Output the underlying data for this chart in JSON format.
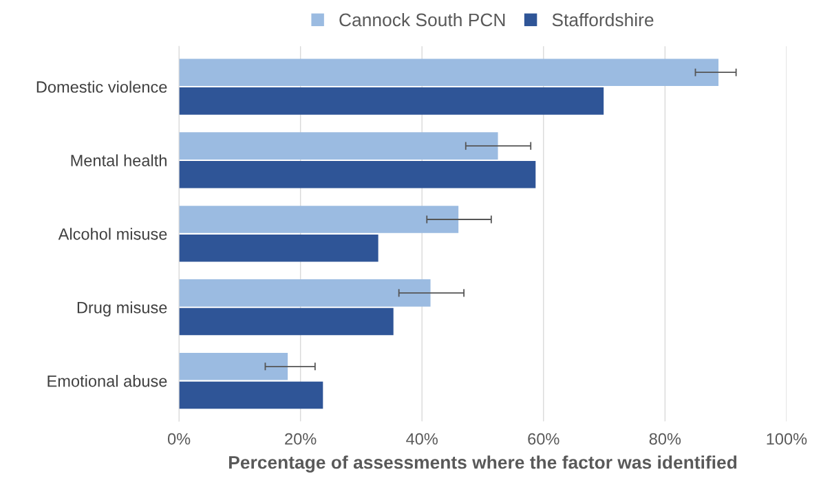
{
  "chart_data": {
    "type": "bar",
    "orientation": "horizontal",
    "xlabel": "Percentage of assessments where the factor was identified",
    "categories": [
      "Domestic violence",
      "Mental health",
      "Alcohol misuse",
      "Drug misuse",
      "Emotional abuse"
    ],
    "series": [
      {
        "name": "Cannock South PCN",
        "color": "#9bbbe1",
        "values": [
          88.8,
          52.5,
          46.0,
          41.4,
          17.9
        ],
        "errors": [
          [
            85.0,
            91.7
          ],
          [
            47.2,
            57.9
          ],
          [
            40.8,
            51.4
          ],
          [
            36.2,
            46.9
          ],
          [
            14.2,
            22.4
          ]
        ]
      },
      {
        "name": "Staffordshire",
        "color": "#2f5597",
        "values": [
          69.9,
          58.7,
          32.8,
          35.3,
          23.7
        ]
      }
    ],
    "xlim": [
      0,
      100
    ],
    "xticks": [
      {
        "value": 0,
        "label": "0%"
      },
      {
        "value": 20,
        "label": "20%"
      },
      {
        "value": 40,
        "label": "40%"
      },
      {
        "value": 60,
        "label": "60%"
      },
      {
        "value": 80,
        "label": "80%"
      },
      {
        "value": 100,
        "label": "100%"
      }
    ],
    "grid": "x",
    "legend": "top"
  }
}
